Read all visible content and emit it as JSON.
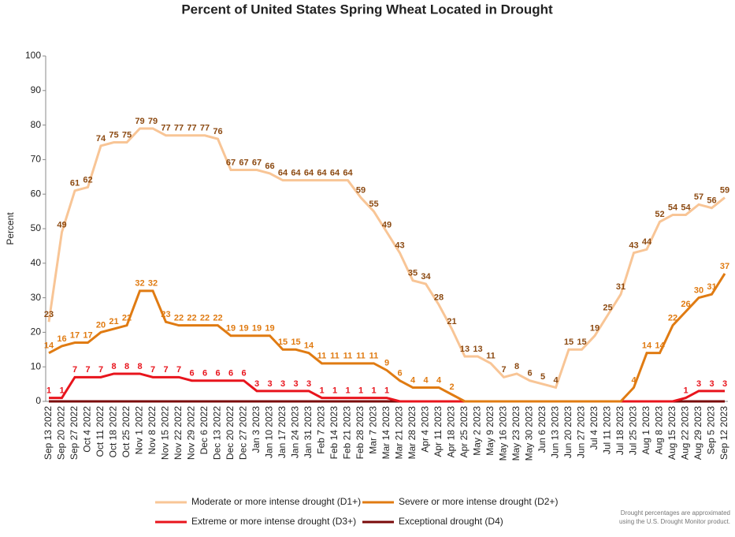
{
  "chart_data": {
    "type": "line",
    "title": "Percent of United States Spring Wheat Located in Drought",
    "y_label": "Percent",
    "note": [
      "Drought percentages are approximated",
      "using the U.S. Drought Monitor product."
    ],
    "categories": [
      "Sep 13 2022",
      "Sep 20 2022",
      "Sep 27 2022",
      "Oct 4 2022",
      "Oct 11 2022",
      "Oct 18 2022",
      "Oct 25 2022",
      "Nov 1 2022",
      "Nov 8 2022",
      "Nov 15 2022",
      "Nov 22 2022",
      "Nov 29 2022",
      "Dec 6 2022",
      "Dec 13 2022",
      "Dec 20 2022",
      "Dec 27 2022",
      "Jan 3 2023",
      "Jan 10 2023",
      "Jan 17 2023",
      "Jan 24 2023",
      "Jan 31 2023",
      "Feb 7 2023",
      "Feb 14 2023",
      "Feb 21 2023",
      "Feb 28 2023",
      "Mar 7 2023",
      "Mar 14 2023",
      "Mar 21 2023",
      "Mar 28 2023",
      "Apr 4 2023",
      "Apr 11 2023",
      "Apr 18 2023",
      "Apr 25 2023",
      "May 2 2023",
      "May 9 2023",
      "May 16 2023",
      "May 23 2023",
      "May 30 2023",
      "Jun 6 2023",
      "Jun 13 2023",
      "Jun 20 2023",
      "Jun 27 2023",
      "Jul 4 2023",
      "Jul 11 2023",
      "Jul 18 2023",
      "Jul 25 2023",
      "Aug 1 2023",
      "Aug 8 2023",
      "Aug 15 2023",
      "Aug 22 2023",
      "Aug 29 2023",
      "Sep 5 2023",
      "Sep 12 2023"
    ],
    "series": [
      {
        "name": "Moderate or more intense drought (D1+)",
        "color": "#f8c596",
        "label_color": "#8c4a12",
        "data_labels": true,
        "values": [
          23,
          49,
          61,
          62,
          74,
          75,
          75,
          79,
          79,
          77,
          77,
          77,
          77,
          76,
          67,
          67,
          67,
          66,
          64,
          64,
          64,
          64,
          64,
          64,
          59,
          55,
          49,
          43,
          35,
          34,
          28,
          21,
          13,
          13,
          11,
          7,
          8,
          6,
          5,
          4,
          15,
          15,
          19,
          25,
          31,
          43,
          44,
          52,
          54,
          54,
          57,
          56,
          59
        ]
      },
      {
        "name": "Severe or more intense drought (D2+)",
        "color": "#e07b12",
        "label_color": "#e07b12",
        "data_labels": true,
        "values": [
          14,
          16,
          17,
          17,
          20,
          21,
          22,
          32,
          32,
          23,
          22,
          22,
          22,
          22,
          19,
          19,
          19,
          19,
          15,
          15,
          14,
          11,
          11,
          11,
          11,
          11,
          9,
          6,
          4,
          4,
          4,
          2,
          0,
          0,
          0,
          0,
          0,
          0,
          0,
          0,
          0,
          0,
          0,
          0,
          0,
          4,
          14,
          14,
          22,
          26,
          30,
          31,
          37
        ],
        "value_labels": [
          "14",
          "16",
          "17",
          "17",
          "20",
          "21",
          "22",
          "32",
          "32",
          "23",
          "22",
          "22",
          "22",
          "22",
          "19",
          "19",
          "19",
          "19",
          "15",
          "15",
          "14",
          "11",
          "11",
          "11",
          "11",
          "11",
          "9",
          "6",
          "4",
          "4",
          "4",
          "2",
          null,
          null,
          null,
          null,
          null,
          null,
          null,
          null,
          null,
          null,
          null,
          null,
          null,
          "4",
          "14",
          "14",
          "22",
          "26",
          "30",
          "31",
          "37"
        ]
      },
      {
        "name": "Extreme or more intense drought (D3+)",
        "color": "#e8141c",
        "label_color": "#e8141c",
        "data_labels": true,
        "values": [
          1,
          1,
          7,
          7,
          7,
          8,
          8,
          8,
          7,
          7,
          7,
          6,
          6,
          6,
          6,
          6,
          3,
          3,
          3,
          3,
          3,
          1,
          1,
          1,
          1,
          1,
          1,
          0,
          0,
          0,
          0,
          0,
          0,
          0,
          0,
          0,
          0,
          0,
          0,
          0,
          0,
          0,
          0,
          0,
          0,
          0,
          0,
          0,
          0,
          1,
          3,
          3,
          3
        ],
        "value_labels": [
          "1",
          "1",
          "7",
          "7",
          "7",
          "8",
          "8",
          "8",
          "7",
          "7",
          "7",
          "6",
          "6",
          "6",
          "6",
          "6",
          "3",
          "3",
          "3",
          "3",
          "3",
          "1",
          "1",
          "1",
          "1",
          "1",
          "1",
          null,
          null,
          null,
          null,
          null,
          null,
          null,
          null,
          null,
          null,
          null,
          null,
          null,
          null,
          null,
          null,
          null,
          null,
          null,
          null,
          null,
          null,
          "1",
          "3",
          "3",
          "3"
        ]
      },
      {
        "name": "Exceptional drought (D4)",
        "color": "#7a0a0a",
        "label_color": "#7a0a0a",
        "data_labels": false,
        "values": [
          0,
          0,
          0,
          0,
          0,
          0,
          0,
          0,
          0,
          0,
          0,
          0,
          0,
          0,
          0,
          0,
          0,
          0,
          0,
          0,
          0,
          0,
          0,
          0,
          0,
          0,
          0,
          0,
          0,
          0,
          0,
          0,
          0,
          0,
          0,
          0,
          0,
          0,
          0,
          0,
          0,
          0,
          0,
          0,
          0,
          0,
          0,
          0,
          0,
          0,
          0,
          0,
          0
        ]
      }
    ],
    "ylim": [
      0,
      100
    ],
    "yticks": [
      0,
      10,
      20,
      30,
      40,
      50,
      60,
      70,
      80,
      90,
      100
    ],
    "grid": false
  }
}
